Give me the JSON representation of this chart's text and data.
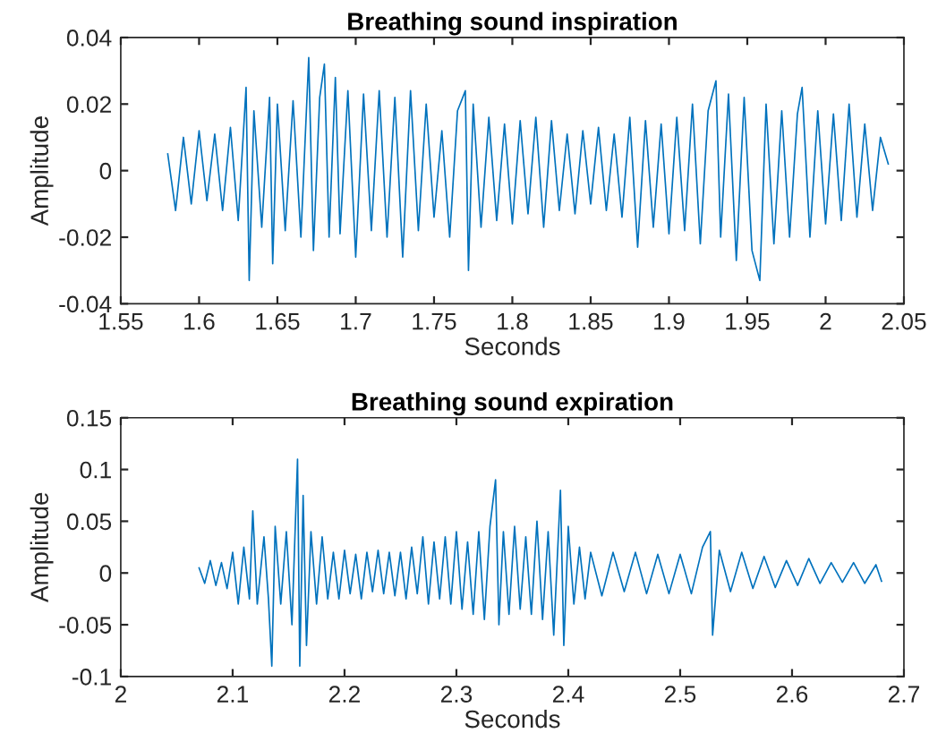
{
  "chart_data": [
    {
      "type": "line",
      "title": "Breathing sound inspiration",
      "xlabel": "Seconds",
      "ylabel": "Amplitude",
      "xlim": [
        1.55,
        2.05
      ],
      "xticks": [
        1.55,
        1.6,
        1.65,
        1.7,
        1.75,
        1.8,
        1.85,
        1.9,
        1.95,
        2,
        2.05
      ],
      "ylim": [
        -0.04,
        0.04
      ],
      "yticks": [
        -0.04,
        -0.02,
        0,
        0.02,
        0.04
      ],
      "grid": false,
      "legend": false,
      "series": [
        {
          "color": "#0072bd",
          "x": [
            1.58,
            1.585,
            1.59,
            1.595,
            1.6,
            1.605,
            1.61,
            1.615,
            1.62,
            1.625,
            1.63,
            1.632,
            1.635,
            1.64,
            1.645,
            1.647,
            1.65,
            1.655,
            1.66,
            1.665,
            1.67,
            1.673,
            1.677,
            1.68,
            1.683,
            1.687,
            1.69,
            1.695,
            1.7,
            1.705,
            1.71,
            1.715,
            1.72,
            1.725,
            1.73,
            1.735,
            1.74,
            1.745,
            1.75,
            1.755,
            1.76,
            1.765,
            1.77,
            1.772,
            1.775,
            1.78,
            1.785,
            1.79,
            1.795,
            1.8,
            1.805,
            1.81,
            1.815,
            1.82,
            1.825,
            1.83,
            1.835,
            1.84,
            1.845,
            1.85,
            1.855,
            1.86,
            1.865,
            1.87,
            1.875,
            1.88,
            1.885,
            1.89,
            1.895,
            1.9,
            1.905,
            1.91,
            1.915,
            1.92,
            1.925,
            1.93,
            1.933,
            1.938,
            1.943,
            1.948,
            1.953,
            1.958,
            1.962,
            1.967,
            1.972,
            1.977,
            1.982,
            1.985,
            1.99,
            1.995,
            2.0,
            2.005,
            2.01,
            2.015,
            2.02,
            2.025,
            2.03,
            2.035,
            2.04
          ],
          "values": [
            0.005,
            -0.012,
            0.01,
            -0.01,
            0.012,
            -0.009,
            0.011,
            -0.012,
            0.013,
            -0.015,
            0.025,
            -0.033,
            0.018,
            -0.017,
            0.022,
            -0.028,
            0.02,
            -0.018,
            0.021,
            -0.02,
            0.034,
            -0.024,
            0.022,
            0.032,
            -0.02,
            0.028,
            -0.019,
            0.024,
            -0.026,
            0.023,
            -0.018,
            0.024,
            -0.02,
            0.022,
            -0.026,
            0.024,
            -0.018,
            0.02,
            -0.014,
            0.012,
            -0.02,
            0.018,
            0.024,
            -0.03,
            0.02,
            -0.017,
            0.016,
            -0.015,
            0.014,
            -0.016,
            0.015,
            -0.013,
            0.016,
            -0.017,
            0.015,
            -0.012,
            0.011,
            -0.013,
            0.012,
            -0.01,
            0.013,
            -0.012,
            0.011,
            -0.014,
            0.016,
            -0.023,
            0.015,
            -0.017,
            0.014,
            -0.019,
            0.016,
            -0.018,
            0.02,
            -0.022,
            0.018,
            0.027,
            -0.02,
            0.023,
            -0.027,
            0.022,
            -0.024,
            -0.033,
            0.02,
            -0.022,
            0.018,
            -0.02,
            0.017,
            0.025,
            -0.02,
            0.018,
            -0.016,
            0.017,
            -0.015,
            0.02,
            -0.014,
            0.014,
            -0.012,
            0.01,
            0.002
          ]
        }
      ]
    },
    {
      "type": "line",
      "title": "Breathing sound expiration",
      "xlabel": "Seconds",
      "ylabel": "Amplitude",
      "xlim": [
        2,
        2.7
      ],
      "xticks": [
        2,
        2.1,
        2.2,
        2.3,
        2.4,
        2.5,
        2.6,
        2.7
      ],
      "ylim": [
        -0.1,
        0.15
      ],
      "yticks": [
        -0.1,
        -0.05,
        0,
        0.05,
        0.1,
        0.15
      ],
      "grid": false,
      "legend": false,
      "series": [
        {
          "color": "#0072bd",
          "x": [
            2.07,
            2.075,
            2.08,
            2.085,
            2.09,
            2.095,
            2.1,
            2.105,
            2.11,
            2.115,
            2.118,
            2.122,
            2.128,
            2.132,
            2.135,
            2.138,
            2.143,
            2.148,
            2.153,
            2.158,
            2.16,
            2.163,
            2.166,
            2.17,
            2.175,
            2.18,
            2.185,
            2.19,
            2.195,
            2.2,
            2.205,
            2.21,
            2.215,
            2.22,
            2.225,
            2.23,
            2.235,
            2.24,
            2.245,
            2.25,
            2.255,
            2.26,
            2.265,
            2.27,
            2.275,
            2.28,
            2.285,
            2.29,
            2.295,
            2.3,
            2.305,
            2.31,
            2.315,
            2.32,
            2.325,
            2.33,
            2.335,
            2.338,
            2.342,
            2.347,
            2.352,
            2.357,
            2.362,
            2.367,
            2.372,
            2.377,
            2.382,
            2.387,
            2.393,
            2.396,
            2.4,
            2.405,
            2.41,
            2.415,
            2.42,
            2.43,
            2.44,
            2.45,
            2.46,
            2.47,
            2.48,
            2.49,
            2.5,
            2.51,
            2.52,
            2.527,
            2.529,
            2.535,
            2.545,
            2.555,
            2.565,
            2.575,
            2.585,
            2.595,
            2.605,
            2.615,
            2.625,
            2.635,
            2.645,
            2.655,
            2.665,
            2.675,
            2.68
          ],
          "values": [
            0.005,
            -0.01,
            0.012,
            -0.012,
            0.01,
            -0.015,
            0.02,
            -0.03,
            0.025,
            -0.025,
            0.06,
            -0.03,
            0.035,
            -0.025,
            -0.09,
            0.045,
            -0.03,
            0.04,
            -0.05,
            0.11,
            -0.09,
            0.075,
            -0.07,
            0.04,
            -0.03,
            0.035,
            -0.025,
            0.02,
            -0.025,
            0.022,
            -0.02,
            0.018,
            -0.025,
            0.02,
            -0.018,
            0.022,
            -0.02,
            0.02,
            -0.022,
            0.02,
            -0.025,
            0.025,
            -0.02,
            0.035,
            -0.03,
            0.03,
            -0.025,
            0.035,
            -0.03,
            0.04,
            -0.035,
            0.03,
            -0.04,
            0.04,
            -0.045,
            0.045,
            0.09,
            -0.05,
            0.04,
            -0.04,
            0.045,
            -0.035,
            0.035,
            -0.04,
            0.05,
            -0.045,
            0.04,
            -0.06,
            0.08,
            -0.07,
            0.045,
            -0.03,
            0.025,
            -0.025,
            0.02,
            -0.022,
            0.02,
            -0.018,
            0.02,
            -0.02,
            0.018,
            -0.02,
            0.018,
            -0.02,
            0.025,
            0.04,
            -0.06,
            0.022,
            -0.018,
            0.02,
            -0.015,
            0.016,
            -0.014,
            0.012,
            -0.012,
            0.014,
            -0.01,
            0.01,
            -0.009,
            0.01,
            -0.01,
            0.008,
            -0.008
          ]
        }
      ]
    }
  ]
}
